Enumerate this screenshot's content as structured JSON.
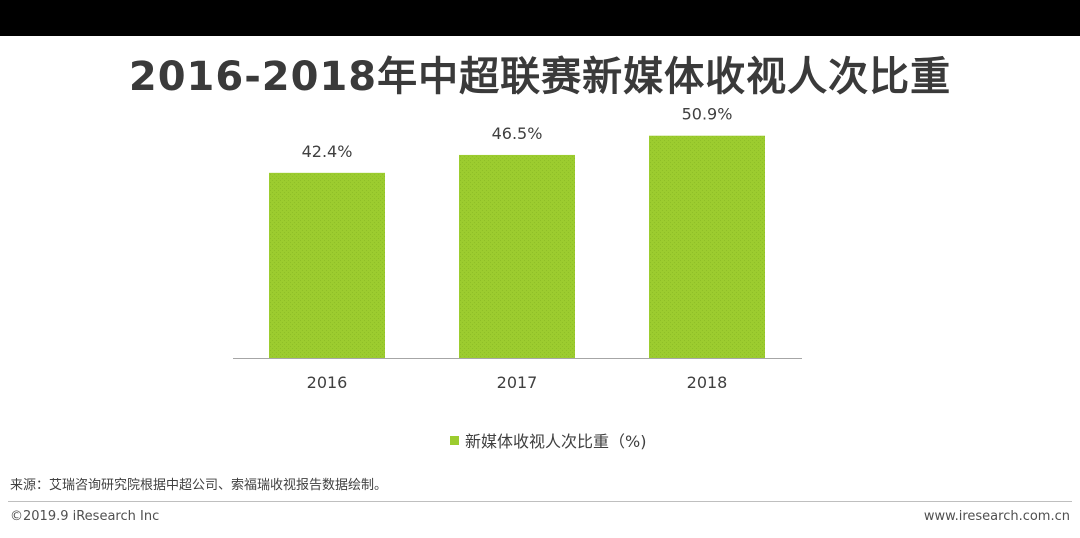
{
  "title": "2016-2018年中超联赛新媒体收视人次比重",
  "chart_data": {
    "type": "bar",
    "categories": [
      "2016",
      "2017",
      "2018"
    ],
    "values": [
      42.4,
      46.5,
      50.9
    ],
    "value_labels": [
      "42.4%",
      "46.5%",
      "50.9%"
    ],
    "series": [
      {
        "name": "新媒体收视人次比重（%)",
        "values": [
          42.4,
          46.5,
          50.9
        ]
      }
    ],
    "ylim": [
      0,
      54.5
    ],
    "grid": false,
    "legend_position": "bottom",
    "bar_color": "#9ccc2f"
  },
  "legend": {
    "label": "新媒体收视人次比重（%)"
  },
  "source": "来源：艾瑞咨询研究院根据中超公司、索福瑞收视报告数据绘制。",
  "footer": {
    "copyright": "©2019.9 iResearch Inc",
    "website": "www.iresearch.com.cn"
  },
  "colors": {
    "bar": "#9ccc2f",
    "axis": "#a6a6a6",
    "title": "#3a3a3a"
  }
}
